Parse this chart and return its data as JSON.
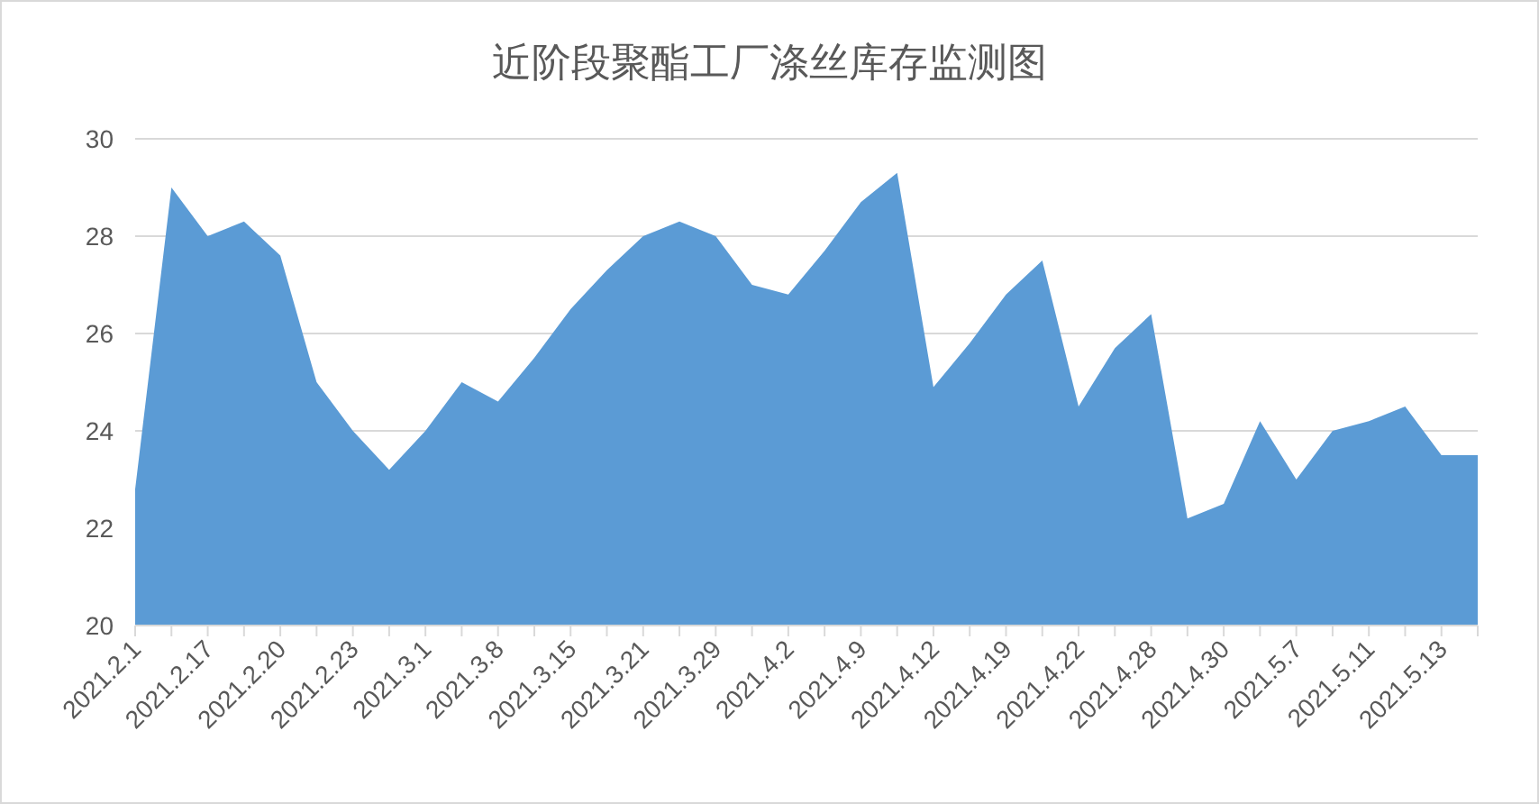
{
  "chart_data": {
    "type": "area",
    "title": "近阶段聚酯工厂涤丝库存监测图",
    "categories": [
      "2021.2.1",
      null,
      "2021.2.17",
      null,
      "2021.2.20",
      null,
      "2021.2.23",
      null,
      "2021.3.1",
      null,
      "2021.3.8",
      null,
      "2021.3.15",
      null,
      "2021.3.21",
      null,
      "2021.3.29",
      null,
      "2021.4.2",
      null,
      "2021.4.9",
      null,
      "2021.4.12",
      null,
      "2021.4.19",
      null,
      "2021.4.22",
      null,
      "2021.4.28",
      null,
      "2021.4.30",
      null,
      "2021.5.7",
      null,
      "2021.5.11",
      null,
      "2021.5.13",
      null
    ],
    "values": [
      22.8,
      29.0,
      28.0,
      28.3,
      27.6,
      25.0,
      24.0,
      23.2,
      24.0,
      25.0,
      24.6,
      25.5,
      26.5,
      27.3,
      28.0,
      28.3,
      28.0,
      27.0,
      26.8,
      27.7,
      28.7,
      29.3,
      24.9,
      25.8,
      26.8,
      27.5,
      24.5,
      25.7,
      26.4,
      22.2,
      22.5,
      24.2,
      23.0,
      24.0,
      24.2,
      24.5,
      23.5,
      23.5
    ],
    "color": "#5b9bd5",
    "ylim": [
      20,
      30
    ],
    "yticks": [
      20,
      22,
      24,
      26,
      28,
      30
    ],
    "grid": "y"
  }
}
